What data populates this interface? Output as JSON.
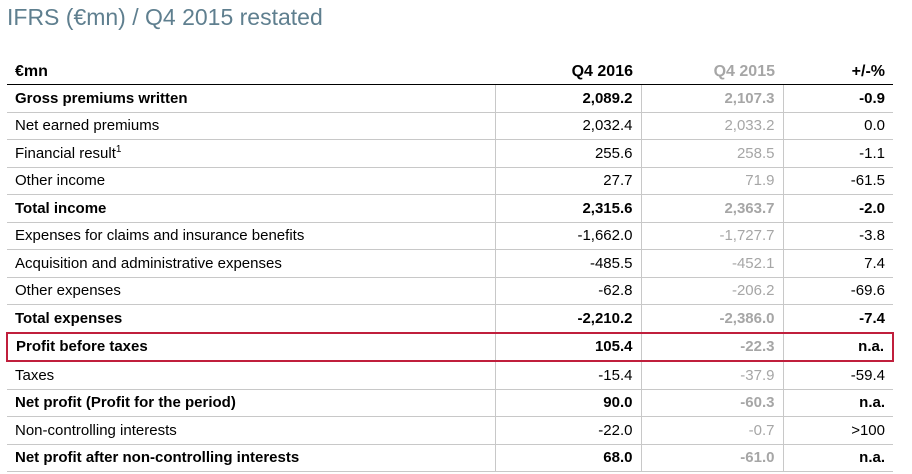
{
  "title": "IFRS (€mn) / Q4 2015 restated",
  "columns": {
    "label": "€mn",
    "current": "Q4 2016",
    "prior": "Q4 2015",
    "change": "+/-%"
  },
  "rows": [
    {
      "label": "Gross premiums written",
      "current": "2,089.2",
      "prior": "2,107.3",
      "change": "-0.9",
      "bold": true
    },
    {
      "label": "Net earned premiums",
      "current": "2,032.4",
      "prior": "2,033.2",
      "change": "0.0"
    },
    {
      "label": "Financial result",
      "sup": "1",
      "current": "255.6",
      "prior": "258.5",
      "change": "-1.1"
    },
    {
      "label": "Other income",
      "current": "27.7",
      "prior": "71.9",
      "change": "-61.5"
    },
    {
      "label": "Total income",
      "current": "2,315.6",
      "prior": "2,363.7",
      "change": "-2.0",
      "bold": true
    },
    {
      "label": "Expenses for claims and insurance benefits",
      "current": "-1,662.0",
      "prior": "-1,727.7",
      "change": "-3.8"
    },
    {
      "label": "Acquisition and administrative expenses",
      "current": "-485.5",
      "prior": "-452.1",
      "change": "7.4"
    },
    {
      "label": "Other expenses",
      "current": "-62.8",
      "prior": "-206.2",
      "change": "-69.6"
    },
    {
      "label": "Total expenses",
      "current": "-2,210.2",
      "prior": "-2,386.0",
      "change": "-7.4",
      "bold": true
    },
    {
      "label": "Profit before taxes",
      "current": "105.4",
      "prior": "-22.3",
      "change": "n.a.",
      "bold": true,
      "highlight": true
    },
    {
      "label": "Taxes",
      "current": "-15.4",
      "prior": "-37.9",
      "change": "-59.4"
    },
    {
      "label": "Net profit (Profit for the period)",
      "current": "90.0",
      "prior": "-60.3",
      "change": "n.a.",
      "bold": true
    },
    {
      "label": "Non-controlling interests",
      "current": "-22.0",
      "prior": "-0.7",
      "change": ">100"
    },
    {
      "label": "Net profit after non-controlling interests",
      "current": "68.0",
      "prior": "-61.0",
      "change": "n.a.",
      "bold": true
    }
  ],
  "colors": {
    "title": "#5f7f8f",
    "prior_column": "#a6a6a6",
    "highlight_border": "#c01f3c",
    "grid": "#c8c8c8"
  }
}
